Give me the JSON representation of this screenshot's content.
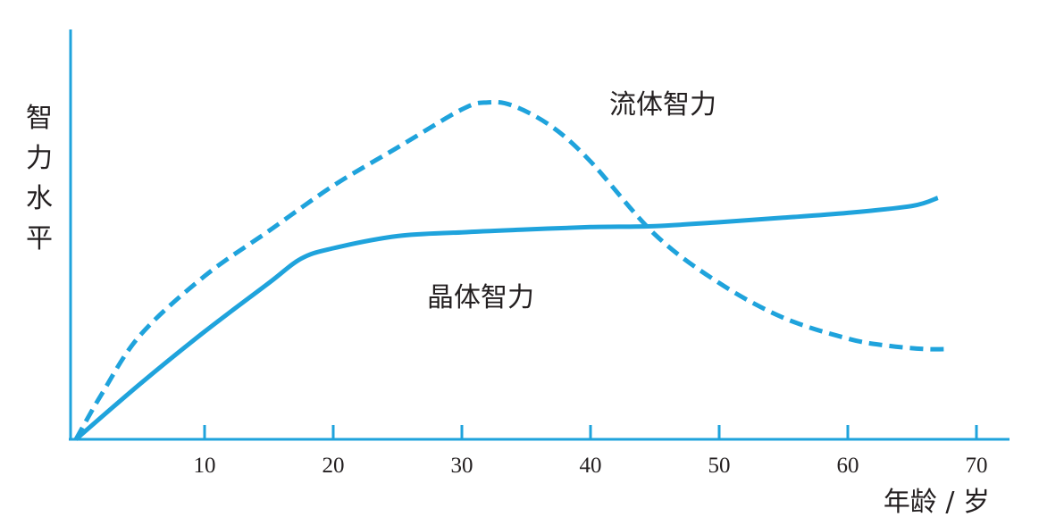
{
  "chart_data": {
    "type": "line",
    "ylabel": "智力水平",
    "xlabel": "年龄 / 岁",
    "x_ticks": [
      10,
      20,
      30,
      40,
      50,
      60,
      70
    ],
    "xlim": [
      0,
      72
    ],
    "ylim": [
      0,
      100
    ],
    "grid": false,
    "series": [
      {
        "name": "流体智力",
        "style": "dashed",
        "color": "#1fa3dc",
        "x": [
          0,
          2,
          5,
          10,
          15,
          20,
          25,
          30,
          32,
          34,
          37,
          40,
          45,
          50,
          55,
          60,
          63,
          66,
          68
        ],
        "y": [
          0,
          13,
          30,
          47,
          60,
          73,
          84,
          95,
          97,
          96,
          90,
          80,
          59,
          45,
          35,
          29,
          27,
          26,
          26
        ]
      },
      {
        "name": "晶体智力",
        "style": "solid",
        "color": "#1fa3dc",
        "x": [
          0,
          5,
          10,
          15,
          17.5,
          20,
          25,
          30,
          35,
          40,
          45,
          50,
          55,
          60,
          65,
          67
        ],
        "y": [
          0,
          16,
          31,
          45,
          52,
          55,
          58.5,
          59.6,
          60.4,
          61.1,
          61.4,
          62.5,
          63.8,
          65.2,
          67.2,
          69.5
        ]
      }
    ]
  }
}
